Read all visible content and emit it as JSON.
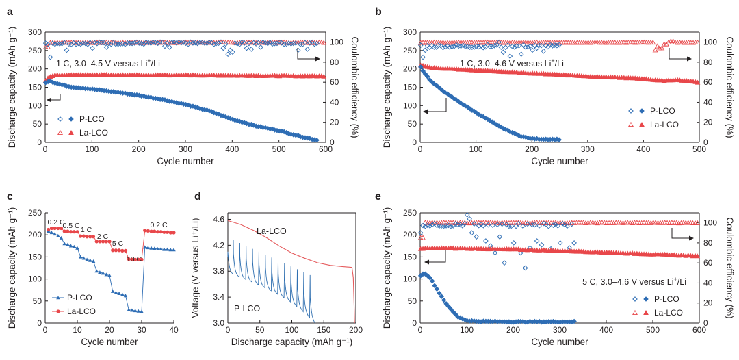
{
  "colors": {
    "plco": "#2e6db4",
    "lalco": "#e8474a",
    "plco_curve": "#2f6fb0",
    "lalco_curve": "#e5595b"
  },
  "chart_data": [
    {
      "panel": "a",
      "type": "scatter",
      "xlabel": "Cycle number",
      "ylabel": "Discharge capacity (mAh g⁻¹)",
      "y2label": "Coulombic efficiency (%)",
      "xlim": [
        0,
        600
      ],
      "ylim": [
        0,
        300
      ],
      "y2lim": [
        0,
        110
      ],
      "xticks": [
        "0",
        "100",
        "200",
        "300",
        "400",
        "500",
        "600"
      ],
      "yticks": [
        "0",
        "50",
        "100",
        "150",
        "200",
        "250",
        "300"
      ],
      "y2ticks": [
        "0",
        "20",
        "40",
        "60",
        "80",
        "100"
      ],
      "annotation": "1 C, 3.0–4.5 V versus Li+/Li",
      "legend": [
        "P-LCO",
        "La-LCO"
      ],
      "series": [
        {
          "name": "P-LCO capacity",
          "x0": 1,
          "x1": 585,
          "points": [
            [
              1,
              163
            ],
            [
              10,
              168
            ],
            [
              20,
              162
            ],
            [
              50,
              152
            ],
            [
              100,
              145
            ],
            [
              150,
              137
            ],
            [
              200,
              128
            ],
            [
              250,
              117
            ],
            [
              300,
              103
            ],
            [
              350,
              86
            ],
            [
              400,
              63
            ],
            [
              450,
              45
            ],
            [
              500,
              32
            ],
            [
              550,
              15
            ],
            [
              585,
              5
            ]
          ]
        },
        {
          "name": "La-LCO capacity",
          "x0": 1,
          "x1": 600,
          "points": [
            [
              1,
              168
            ],
            [
              8,
              178
            ],
            [
              20,
              183
            ],
            [
              100,
              184
            ],
            [
              200,
              183
            ],
            [
              300,
              183
            ],
            [
              400,
              182
            ],
            [
              500,
              181
            ],
            [
              600,
              180
            ]
          ]
        },
        {
          "name": "P-LCO CE",
          "x0": 1,
          "x1": 585,
          "ce": 99,
          "noise": 2.5,
          "dips": [
            [
              12,
              85
            ],
            [
              45,
              92
            ],
            [
              100,
              94
            ],
            [
              130,
              95
            ],
            [
              255,
              96
            ],
            [
              265,
              95
            ],
            [
              380,
              94
            ],
            [
              390,
              88
            ],
            [
              395,
              92
            ],
            [
              400,
              90
            ],
            [
              430,
              94
            ],
            [
              440,
              93
            ],
            [
              460,
              95
            ],
            [
              540,
              92
            ],
            [
              560,
              93
            ]
          ]
        },
        {
          "name": "La-LCO CE",
          "x0": 1,
          "x1": 600,
          "ce": 99.6,
          "noise": 0.6,
          "dips": [
            [
              3,
              95
            ]
          ]
        }
      ]
    },
    {
      "panel": "b",
      "type": "scatter",
      "xlabel": "Cycle number",
      "ylabel": "Discharge capacity (mAh g⁻¹)",
      "y2label": "Coulombic efficiency (%)",
      "xlim": [
        0,
        500
      ],
      "ylim": [
        0,
        300
      ],
      "y2lim": [
        0,
        110
      ],
      "xticks": [
        "0",
        "100",
        "200",
        "300",
        "400",
        "500"
      ],
      "yticks": [
        "0",
        "50",
        "100",
        "150",
        "200",
        "250",
        "300"
      ],
      "y2ticks": [
        "0",
        "20",
        "40",
        "60",
        "80",
        "100"
      ],
      "annotation": "1 C, 3.0–4.6 V versus Li+/Li",
      "legend": [
        "P-LCO",
        "La-LCO"
      ],
      "series": [
        {
          "name": "P-LCO capacity",
          "x0": 1,
          "x1": 250,
          "points": [
            [
              1,
              205
            ],
            [
              5,
              195
            ],
            [
              20,
              165
            ],
            [
              50,
              130
            ],
            [
              80,
              100
            ],
            [
              110,
              72
            ],
            [
              140,
              45
            ],
            [
              160,
              30
            ],
            [
              180,
              17
            ],
            [
              200,
              10
            ],
            [
              220,
              9
            ],
            [
              250,
              8
            ]
          ]
        },
        {
          "name": "La-LCO capacity",
          "x0": 1,
          "x1": 500,
          "points": [
            [
              1,
              210
            ],
            [
              20,
              203
            ],
            [
              100,
              196
            ],
            [
              200,
              188
            ],
            [
              300,
              180
            ],
            [
              400,
              173
            ],
            [
              430,
              168
            ],
            [
              460,
              170
            ],
            [
              500,
              163
            ]
          ]
        },
        {
          "name": "P-LCO CE",
          "x0": 1,
          "x1": 250,
          "ce": 96,
          "noise": 3,
          "dips": [
            [
              5,
              85
            ],
            [
              8,
              92
            ],
            [
              140,
              100
            ],
            [
              150,
              90
            ],
            [
              160,
              86
            ],
            [
              170,
              95
            ],
            [
              180,
              88
            ],
            [
              200,
              92
            ],
            [
              210,
              94
            ],
            [
              220,
              91
            ],
            [
              240,
              97
            ]
          ]
        },
        {
          "name": "La-LCO CE",
          "x0": 1,
          "x1": 500,
          "ce": 99.6,
          "noise": 0.5,
          "dips": [
            [
              422,
              92
            ],
            [
              425,
              96
            ],
            [
              430,
              94
            ],
            [
              440,
              98
            ],
            [
              450,
              101
            ]
          ]
        }
      ]
    },
    {
      "panel": "c",
      "type": "scatter",
      "xlabel": "Cycle number",
      "ylabel": "Discharge capacity (mAh g⁻¹)",
      "xlim": [
        0,
        40
      ],
      "ylim": [
        0,
        250
      ],
      "xticks": [
        "0",
        "10",
        "20",
        "30",
        "40"
      ],
      "yticks": [
        "0",
        "50",
        "100",
        "150",
        "200",
        "250"
      ],
      "legend": [
        "P-LCO",
        "La-LCO"
      ],
      "rate_labels": [
        "0.2 C",
        "0.5 C",
        "1 C",
        "2 C",
        "5 C",
        "10 C",
        "0.2 C"
      ],
      "series": [
        {
          "name": "P-LCO",
          "x": [
            1,
            2,
            3,
            4,
            5,
            6,
            7,
            8,
            9,
            10,
            11,
            12,
            13,
            14,
            15,
            16,
            17,
            18,
            19,
            20,
            21,
            22,
            23,
            24,
            25,
            26,
            27,
            28,
            29,
            30,
            31,
            32,
            33,
            34,
            35,
            36,
            37,
            38,
            39,
            40
          ],
          "y": [
            208,
            205,
            202,
            198,
            193,
            180,
            178,
            175,
            173,
            170,
            150,
            147,
            144,
            142,
            140,
            118,
            115,
            113,
            110,
            108,
            72,
            69,
            67,
            65,
            62,
            30,
            29,
            28,
            27,
            26,
            172,
            171,
            170,
            169,
            168,
            168,
            167,
            167,
            166,
            166
          ]
        },
        {
          "name": "La-LCO",
          "x": [
            1,
            2,
            3,
            4,
            5,
            6,
            7,
            8,
            9,
            10,
            11,
            12,
            13,
            14,
            15,
            16,
            17,
            18,
            19,
            20,
            21,
            22,
            23,
            24,
            25,
            26,
            27,
            28,
            29,
            30,
            31,
            32,
            33,
            34,
            35,
            36,
            37,
            38,
            39,
            40
          ],
          "y": [
            212,
            215,
            215,
            215,
            215,
            208,
            208,
            207,
            207,
            207,
            197,
            197,
            196,
            196,
            196,
            185,
            185,
            185,
            185,
            185,
            165,
            165,
            165,
            164,
            164,
            145,
            144,
            144,
            144,
            144,
            210,
            209,
            208,
            208,
            207,
            207,
            206,
            206,
            205,
            205
          ]
        }
      ]
    },
    {
      "panel": "d",
      "type": "line",
      "xlabel": "Discharge capacity (mAh g⁻¹)",
      "ylabel": "Voltage (V versus Li⁺/Li)",
      "xlim": [
        0,
        200
      ],
      "ylim": [
        3.0,
        4.7
      ],
      "xticks": [
        "0",
        "50",
        "100",
        "150",
        "200"
      ],
      "yticks": [
        "3.0",
        "3.4",
        "3.8",
        "4.2",
        "4.6"
      ],
      "labels": [
        "La-LCO",
        "P-LCO"
      ],
      "series": [
        {
          "name": "La-LCO",
          "points": [
            [
              0,
              4.58
            ],
            [
              20,
              4.52
            ],
            [
              40,
              4.43
            ],
            [
              60,
              4.32
            ],
            [
              80,
              4.19
            ],
            [
              100,
              4.08
            ],
            [
              120,
              4.0
            ],
            [
              140,
              3.93
            ],
            [
              160,
              3.89
            ],
            [
              180,
              3.87
            ],
            [
              194,
              3.86
            ],
            [
              196,
              3.7
            ],
            [
              197.5,
              3.2
            ],
            [
              198,
              3.0
            ]
          ]
        },
        {
          "name": "P-LCO",
          "x_end": 137,
          "pulses": 13
        }
      ]
    },
    {
      "panel": "e",
      "type": "scatter",
      "xlabel": "Cycle number",
      "ylabel": "Discharge capacity (mAh g⁻¹)",
      "y2label": "Coulombic efficiency (%)",
      "xlim": [
        0,
        600
      ],
      "ylim": [
        0,
        250
      ],
      "y2lim": [
        0,
        110
      ],
      "xticks": [
        "0",
        "100",
        "200",
        "300",
        "400",
        "500",
        "600"
      ],
      "yticks": [
        "0",
        "50",
        "100",
        "150",
        "200",
        "250"
      ],
      "y2ticks": [
        "0",
        "20",
        "40",
        "60",
        "80",
        "100"
      ],
      "annotation": "5 C, 3.0–4.6 V versus Li+/Li",
      "legend": [
        "P-LCO",
        "La-LCO"
      ],
      "series": [
        {
          "name": "P-LCO capacity",
          "x0": 1,
          "x1": 335,
          "points": [
            [
              1,
              108
            ],
            [
              10,
              113
            ],
            [
              20,
              105
            ],
            [
              40,
              70
            ],
            [
              60,
              38
            ],
            [
              80,
              15
            ],
            [
              100,
              6
            ],
            [
              120,
              4
            ],
            [
              200,
              3
            ],
            [
              335,
              3
            ]
          ]
        },
        {
          "name": "La-LCO capacity",
          "x0": 1,
          "x1": 600,
          "points": [
            [
              1,
              168
            ],
            [
              20,
              170
            ],
            [
              100,
              169
            ],
            [
              200,
              167
            ],
            [
              300,
              164
            ],
            [
              400,
              160
            ],
            [
              500,
              156
            ],
            [
              600,
              152
            ]
          ]
        },
        {
          "name": "P-LCO CE",
          "x0": 1,
          "x1": 335,
          "ce": 98,
          "noise": 3,
          "dips": [
            [
              3,
              90
            ],
            [
              100,
              108
            ],
            [
              105,
              104
            ],
            [
              110,
              90
            ],
            [
              120,
              86
            ],
            [
              140,
              82
            ],
            [
              150,
              77
            ],
            [
              160,
              70
            ],
            [
              170,
              86
            ],
            [
              180,
              60
            ],
            [
              200,
              80
            ],
            [
              215,
              70
            ],
            [
              225,
              55
            ],
            [
              235,
              75
            ],
            [
              250,
              82
            ],
            [
              260,
              78
            ],
            [
              280,
              74
            ],
            [
              300,
              80
            ],
            [
              320,
              75
            ],
            [
              330,
              80
            ]
          ]
        },
        {
          "name": "La-LCO CE",
          "x0": 1,
          "x1": 600,
          "ce": 100,
          "noise": 0.6,
          "dips": [
            [
              4,
              85
            ]
          ]
        }
      ]
    }
  ]
}
